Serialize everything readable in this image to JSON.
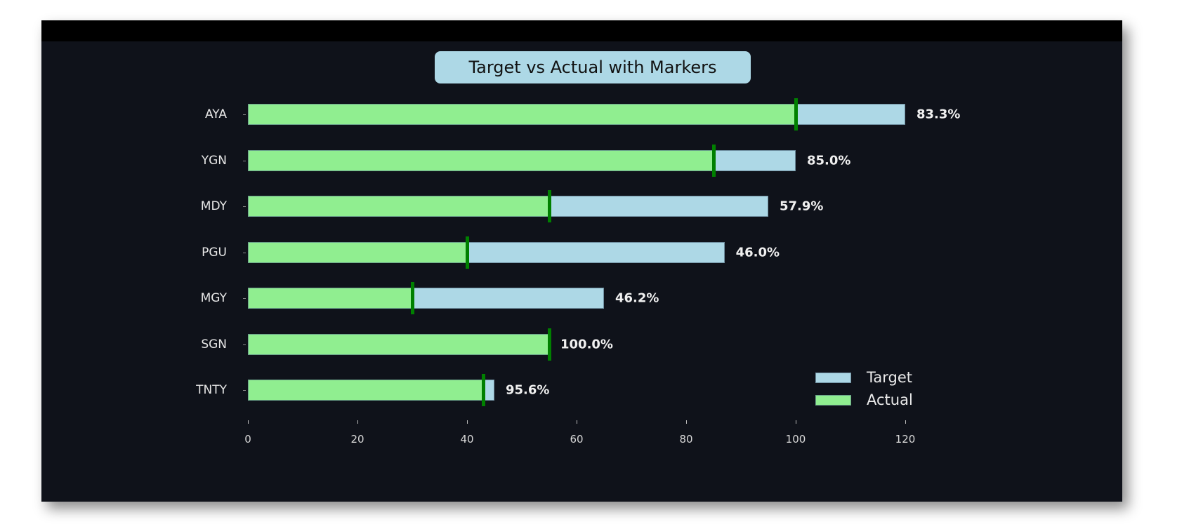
{
  "chart_data": {
    "type": "bar",
    "orientation": "horizontal",
    "title": "Target vs Actual with Markers",
    "xlabel": "",
    "ylabel": "",
    "categories": [
      "AYA",
      "YGN",
      "MDY",
      "PGU",
      "MGY",
      "SGN",
      "TNTY"
    ],
    "series": [
      {
        "name": "Target",
        "color": "#add8e6",
        "values": [
          120,
          100,
          95,
          87,
          65,
          55,
          45
        ]
      },
      {
        "name": "Actual",
        "color": "#90ee90",
        "values": [
          100,
          85,
          55,
          40,
          30,
          55,
          43
        ]
      }
    ],
    "markers": {
      "color": "#008000",
      "values": [
        100,
        85,
        55,
        40,
        30,
        55,
        43
      ]
    },
    "annotations": [
      "83.3%",
      "85.0%",
      "57.9%",
      "46.0%",
      "46.2%",
      "100.0%",
      "95.6%"
    ],
    "xticks": [
      0,
      20,
      40,
      60,
      80,
      100,
      120
    ],
    "xlim": [
      0,
      120
    ],
    "grid": false,
    "legend_position": "lower right",
    "background": "#0f121a"
  },
  "title": "Target vs Actual with Markers",
  "legend": [
    {
      "label": "Target",
      "color": "#add8e6"
    },
    {
      "label": "Actual",
      "color": "#90ee90"
    }
  ],
  "rows": [
    {
      "label": "AYA",
      "target": 120,
      "actual": 100,
      "pct": "83.3%"
    },
    {
      "label": "YGN",
      "target": 100,
      "actual": 85,
      "pct": "85.0%"
    },
    {
      "label": "MDY",
      "target": 95,
      "actual": 55,
      "pct": "57.9%"
    },
    {
      "label": "PGU",
      "target": 87,
      "actual": 40,
      "pct": "46.0%"
    },
    {
      "label": "MGY",
      "target": 65,
      "actual": 30,
      "pct": "46.2%"
    },
    {
      "label": "SGN",
      "target": 55,
      "actual": 55,
      "pct": "100.0%"
    },
    {
      "label": "TNTY",
      "target": 45,
      "actual": 43,
      "pct": "95.6%"
    }
  ],
  "xticks": [
    "0",
    "20",
    "40",
    "60",
    "80",
    "100",
    "120"
  ]
}
